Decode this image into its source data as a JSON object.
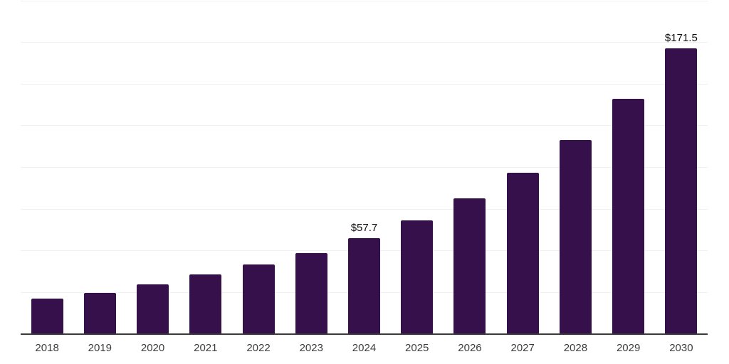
{
  "chart_data": {
    "type": "bar",
    "title": "",
    "xlabel": "",
    "ylabel": "",
    "categories": [
      "2018",
      "2019",
      "2020",
      "2021",
      "2022",
      "2023",
      "2024",
      "2025",
      "2026",
      "2027",
      "2028",
      "2029",
      "2030"
    ],
    "values": [
      21.5,
      24.6,
      29.9,
      35.9,
      41.9,
      48.8,
      57.7,
      68.3,
      81.3,
      97.0,
      116.4,
      141.0,
      171.5
    ],
    "data_labels": [
      null,
      null,
      null,
      null,
      null,
      null,
      "$57.7",
      null,
      null,
      null,
      null,
      null,
      "$171.5"
    ],
    "labeled_points_note": "only 2024 and 2030 bars carry visible value labels",
    "ylim": [
      0,
      200
    ],
    "gridline_step": 25,
    "grid": true,
    "legend_position": "none",
    "y_tick_labels_visible": false,
    "colors": {
      "bar": "#36104A",
      "axis": "#3A3A3A",
      "gridline": "#F1F1F1",
      "tick_label": "#3D3D3D",
      "data_label": "#111111",
      "background": "#FFFFFF"
    }
  }
}
